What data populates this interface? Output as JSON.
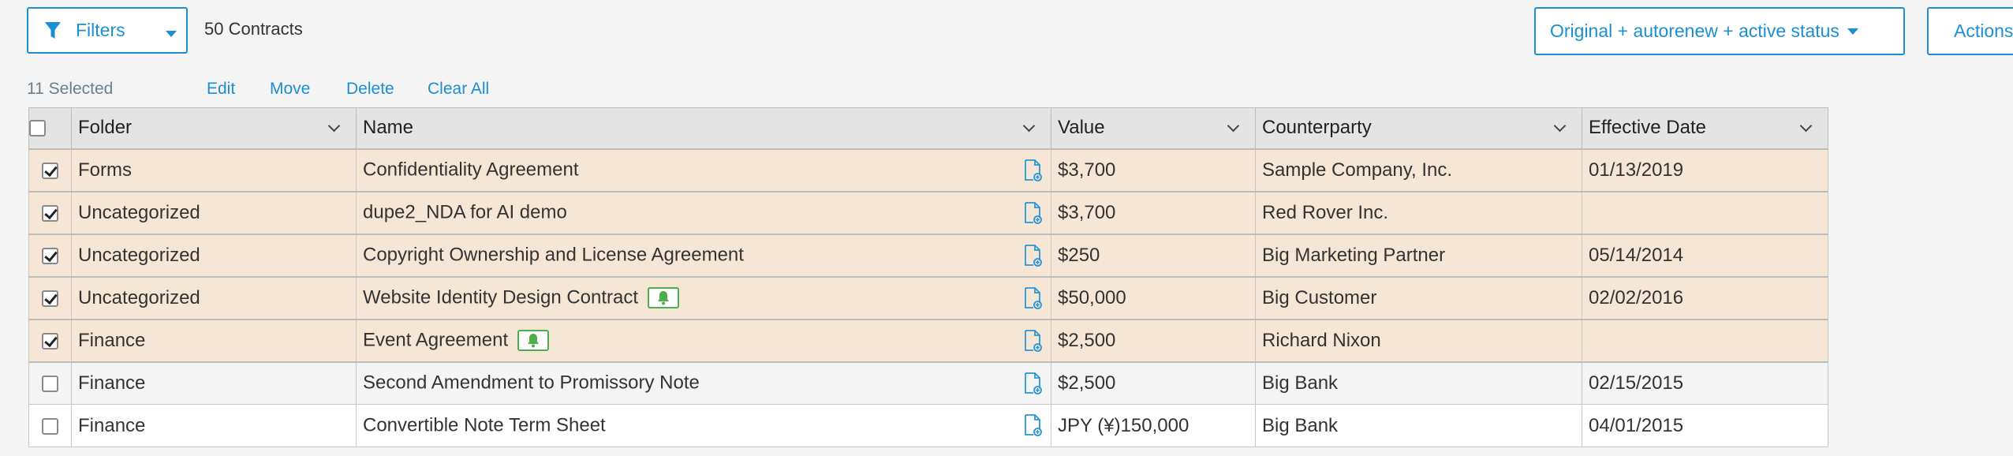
{
  "toolbar": {
    "filters_label": "Filters",
    "contract_count": "50 Contracts",
    "view_label": "Original + autorenew + active status",
    "actions_label": "Actions"
  },
  "selection": {
    "count_label": "11 Selected",
    "edit": "Edit",
    "move": "Move",
    "delete": "Delete",
    "clear_all": "Clear All"
  },
  "table": {
    "columns": [
      "Folder",
      "Name",
      "Value",
      "Counterparty",
      "Effective Date"
    ],
    "rows": [
      {
        "selected": true,
        "folder": "Forms",
        "name": "Confidentiality Agreement",
        "bell": false,
        "value": "$3,700",
        "counterparty": "Sample Company, Inc.",
        "effective_date": "01/13/2019"
      },
      {
        "selected": true,
        "folder": "Uncategorized",
        "name": "dupe2_NDA for AI demo",
        "bell": false,
        "value": "$3,700",
        "counterparty": "Red Rover Inc.",
        "effective_date": ""
      },
      {
        "selected": true,
        "folder": "Uncategorized",
        "name": "Copyright Ownership and License Agreement",
        "bell": false,
        "value": "$250",
        "counterparty": "Big Marketing Partner",
        "effective_date": "05/14/2014"
      },
      {
        "selected": true,
        "folder": "Uncategorized",
        "name": "Website Identity Design Contract",
        "bell": true,
        "value": "$50,000",
        "counterparty": "Big Customer",
        "effective_date": "02/02/2016"
      },
      {
        "selected": true,
        "folder": "Finance",
        "name": "Event Agreement",
        "bell": true,
        "value": "$2,500",
        "counterparty": "Richard Nixon",
        "effective_date": ""
      },
      {
        "selected": false,
        "folder": "Finance",
        "name": "Second Amendment to Promissory Note",
        "bell": false,
        "value": "$2,500",
        "counterparty": "Big Bank",
        "effective_date": "02/15/2015"
      },
      {
        "selected": false,
        "folder": "Finance",
        "name": "Convertible Note Term Sheet",
        "bell": false,
        "value": "JPY (¥)150,000",
        "counterparty": "Big Bank",
        "effective_date": "04/01/2015"
      }
    ]
  },
  "icons": {
    "filter": "funnel-icon",
    "document": "document-add-icon",
    "reminder": "bell-icon"
  },
  "colors": {
    "accent": "#1b8fd1",
    "selected_row": "#f5e6d6",
    "bell_green": "#4cae4c"
  }
}
